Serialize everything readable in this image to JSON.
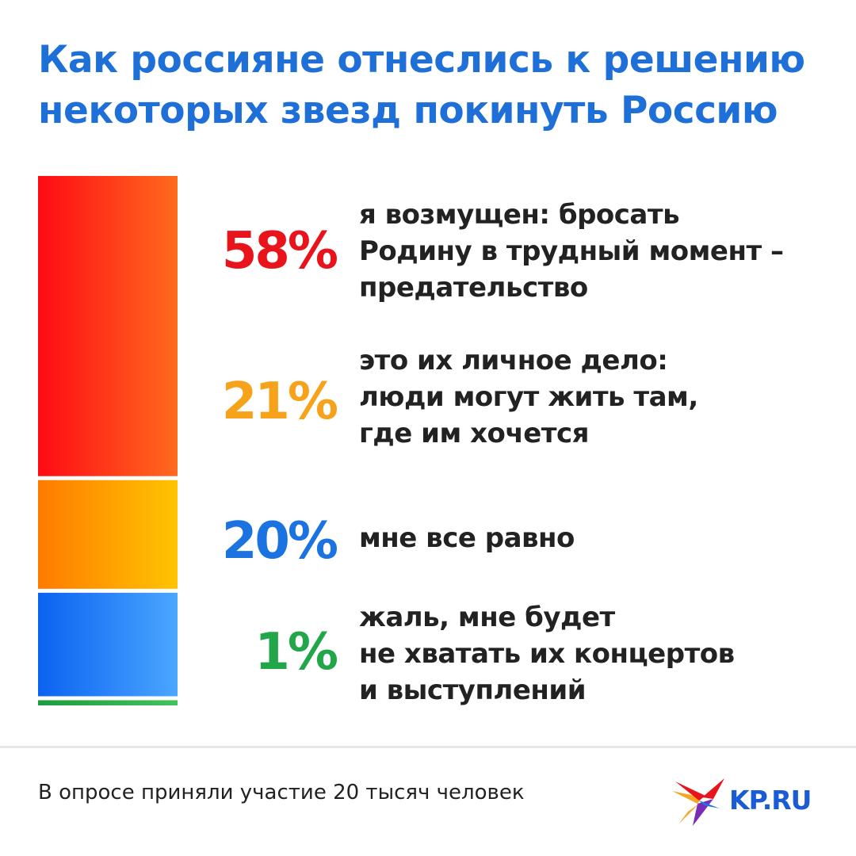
{
  "title": {
    "line1": "Как россияне отнеслись к решению",
    "line2": "некоторых звезд покинуть Россию"
  },
  "colors": {
    "title": "#1e6fd8",
    "text": "#222222",
    "red": "#e8131b",
    "orange": "#f7a21b",
    "blue": "#1a73e0",
    "green": "#22a64a"
  },
  "chart_data": {
    "type": "bar",
    "orientation": "stacked-vertical",
    "unit": "%",
    "categories": [
      "я возмущен: бросать Родину в трудный момент – предательство",
      "это их личное дело: люди могут жить там, где им хочется",
      "мне все равно",
      "жаль, мне будет не хватать их концертов и выступлений"
    ],
    "values": [
      58,
      21,
      20,
      1
    ],
    "data_labels": [
      "58%",
      "21%",
      "20%",
      "1%"
    ],
    "legend": false,
    "grid": false
  },
  "rows": [
    {
      "pct": "58%",
      "color": "#e8131b",
      "lines": [
        "я возмущен: бросать",
        "Родину в трудный момент –",
        "предательство"
      ]
    },
    {
      "pct": "21%",
      "color": "#f7a21b",
      "lines": [
        "это их личное дело:",
        "люди могут жить там,",
        "где им хочется"
      ]
    },
    {
      "pct": "20%",
      "color": "#1a73e0",
      "lines": [
        "мне все равно"
      ]
    },
    {
      "pct": "1%",
      "color": "#22a64a",
      "lines": [
        "жаль, мне будет",
        "не хватать их концертов",
        "и выступлений"
      ]
    }
  ],
  "footer": {
    "note": "В опросе приняли участие 20 тысяч человек",
    "logo": "KP.RU",
    "logo_icon": "swallow-bird-icon"
  }
}
